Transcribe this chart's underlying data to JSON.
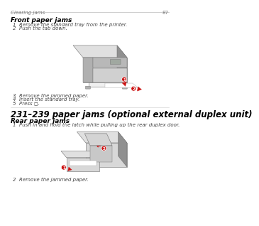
{
  "bg_color": "#ffffff",
  "header_line_color": "#bbbbbb",
  "header_text": "Clearing jams",
  "header_page": "87",
  "header_font_size": 5.0,
  "header_text_color": "#777777",
  "section1_title": "Front paper jams",
  "section1_title_size": 6.5,
  "section1_title_color": "#000000",
  "section1_items": [
    "1  Remove the standard tray from the printer.",
    "2  Push the tab down."
  ],
  "section1_after_items": [
    "3  Remove the jammed paper.",
    "4  Insert the standard tray.",
    "5  Press ◻."
  ],
  "section2_title": "231–239 paper jams (optional external duplex unit)",
  "section2_title_size": 8.5,
  "section2_title_color": "#000000",
  "section3_title": "Rear paper jams",
  "section3_title_size": 6.5,
  "section3_title_color": "#000000",
  "section3_items": [
    "1  Push in and hold the latch while pulling up the rear duplex door."
  ],
  "section3_after_items": [
    "2  Remove the jammed paper."
  ],
  "body_font_size": 5.0,
  "body_text_color": "#444444",
  "red_color": "#cc1111",
  "gray_body": "#c0c0c0",
  "gray_top": "#e0e0e0",
  "gray_side": "#909090",
  "gray_front": "#d8d8d8",
  "gray_dark": "#707070",
  "gray_medium": "#b0b0b0",
  "white": "#ffffff",
  "light": "#f0f0f0"
}
